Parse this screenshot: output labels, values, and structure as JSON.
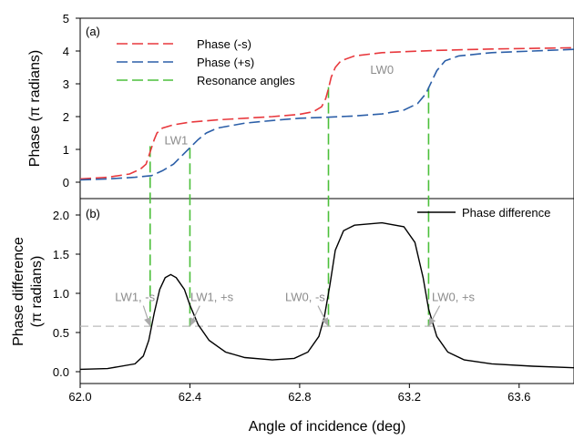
{
  "chart_data": [
    {
      "panel_label": "(a)",
      "type": "line",
      "ylabel": "Phase (π radians)",
      "ylim": [
        0,
        5
      ],
      "yticks": [
        "0",
        "1",
        "2",
        "3",
        "4",
        "5"
      ],
      "xlim": [
        62.0,
        63.8
      ],
      "legend": {
        "placement": "top-left",
        "entries": [
          "Phase (-s)",
          "Phase (+s)",
          "Resonance angles"
        ]
      },
      "series": [
        {
          "name": "Phase (-s)",
          "color": "#e8383d",
          "style": "dashed",
          "points": [
            [
              62.0,
              0.1
            ],
            [
              62.1,
              0.15
            ],
            [
              62.18,
              0.25
            ],
            [
              62.22,
              0.4
            ],
            [
              62.24,
              0.55
            ],
            [
              62.25,
              0.8
            ],
            [
              62.26,
              1.05
            ],
            [
              62.27,
              1.3
            ],
            [
              62.28,
              1.5
            ],
            [
              62.3,
              1.65
            ],
            [
              62.34,
              1.75
            ],
            [
              62.4,
              1.83
            ],
            [
              62.5,
              1.9
            ],
            [
              62.6,
              1.95
            ],
            [
              62.7,
              2.0
            ],
            [
              62.8,
              2.07
            ],
            [
              62.85,
              2.15
            ],
            [
              62.88,
              2.3
            ],
            [
              62.895,
              2.55
            ],
            [
              62.905,
              2.85
            ],
            [
              62.915,
              3.2
            ],
            [
              62.93,
              3.5
            ],
            [
              62.95,
              3.7
            ],
            [
              63.0,
              3.85
            ],
            [
              63.1,
              3.95
            ],
            [
              63.3,
              4.02
            ],
            [
              63.5,
              4.06
            ],
            [
              63.8,
              4.1
            ]
          ]
        },
        {
          "name": "Phase (+s)",
          "color": "#2c5fa8",
          "style": "dashed",
          "points": [
            [
              62.0,
              0.07
            ],
            [
              62.1,
              0.1
            ],
            [
              62.2,
              0.15
            ],
            [
              62.26,
              0.2
            ],
            [
              62.3,
              0.35
            ],
            [
              62.34,
              0.55
            ],
            [
              62.37,
              0.8
            ],
            [
              62.4,
              1.05
            ],
            [
              62.43,
              1.3
            ],
            [
              62.46,
              1.5
            ],
            [
              62.5,
              1.65
            ],
            [
              62.6,
              1.8
            ],
            [
              62.7,
              1.88
            ],
            [
              62.8,
              1.95
            ],
            [
              62.9,
              1.98
            ],
            [
              63.0,
              2.02
            ],
            [
              63.1,
              2.08
            ],
            [
              63.18,
              2.2
            ],
            [
              63.23,
              2.4
            ],
            [
              63.26,
              2.7
            ],
            [
              63.28,
              3.05
            ],
            [
              63.3,
              3.4
            ],
            [
              63.33,
              3.7
            ],
            [
              63.38,
              3.85
            ],
            [
              63.5,
              3.95
            ],
            [
              63.65,
              4.0
            ],
            [
              63.8,
              4.05
            ]
          ]
        }
      ],
      "resonance_lines": [
        {
          "x": 62.255,
          "y_top": 1.1
        },
        {
          "x": 62.4,
          "y_top": 1.05
        },
        {
          "x": 62.905,
          "y_top": 2.9
        },
        {
          "x": 63.27,
          "y_top": 2.9
        }
      ],
      "annotations": [
        {
          "text": "LW1",
          "x": 62.35,
          "y": 1.15
        },
        {
          "text": "LW0",
          "x": 63.1,
          "y": 3.3
        }
      ]
    },
    {
      "panel_label": "(b)",
      "type": "line",
      "ylabel_line1": "Phase difference",
      "ylabel_line2": "(π radians)",
      "xlabel": "Angle of incidence (deg)",
      "xlim": [
        62.0,
        63.8
      ],
      "xticks": [
        "62.0",
        "62.4",
        "62.8",
        "63.2",
        "63.6"
      ],
      "ylim": [
        -0.1,
        2.2
      ],
      "yticks": [
        "0.0",
        "0.5",
        "1.0",
        "1.5",
        "2.0"
      ],
      "legend": {
        "placement": "top-right",
        "entries": [
          "Phase difference"
        ]
      },
      "series": [
        {
          "name": "Phase difference",
          "color": "#000000",
          "style": "solid",
          "points": [
            [
              62.0,
              0.03
            ],
            [
              62.1,
              0.04
            ],
            [
              62.2,
              0.1
            ],
            [
              62.23,
              0.2
            ],
            [
              62.25,
              0.4
            ],
            [
              62.27,
              0.75
            ],
            [
              62.29,
              1.05
            ],
            [
              62.31,
              1.2
            ],
            [
              62.33,
              1.24
            ],
            [
              62.35,
              1.2
            ],
            [
              62.38,
              1.05
            ],
            [
              62.4,
              0.85
            ],
            [
              62.43,
              0.6
            ],
            [
              62.47,
              0.4
            ],
            [
              62.53,
              0.25
            ],
            [
              62.6,
              0.18
            ],
            [
              62.7,
              0.15
            ],
            [
              62.78,
              0.17
            ],
            [
              62.83,
              0.25
            ],
            [
              62.87,
              0.45
            ],
            [
              62.89,
              0.7
            ],
            [
              62.91,
              1.1
            ],
            [
              62.93,
              1.55
            ],
            [
              62.96,
              1.8
            ],
            [
              63.0,
              1.87
            ],
            [
              63.1,
              1.9
            ],
            [
              63.18,
              1.85
            ],
            [
              63.22,
              1.65
            ],
            [
              63.25,
              1.2
            ],
            [
              63.27,
              0.8
            ],
            [
              63.3,
              0.45
            ],
            [
              63.34,
              0.25
            ],
            [
              63.4,
              0.15
            ],
            [
              63.5,
              0.1
            ],
            [
              63.65,
              0.07
            ],
            [
              63.8,
              0.05
            ]
          ]
        }
      ],
      "reference_line": {
        "y": 0.58,
        "color": "#bbbbbb",
        "style": "dashed"
      },
      "resonance_lines": [
        {
          "x": 62.255,
          "y_bottom": 0.58
        },
        {
          "x": 62.4,
          "y_bottom": 0.58
        },
        {
          "x": 62.905,
          "y_bottom": 0.58
        },
        {
          "x": 63.27,
          "y_bottom": 0.58
        }
      ],
      "annotations": [
        {
          "text": "LW1, -s",
          "x": 62.2,
          "y": 0.9,
          "target_x": 62.255,
          "target_y": 0.58
        },
        {
          "text": "LW1, +s",
          "x": 62.48,
          "y": 0.9,
          "target_x": 62.4,
          "target_y": 0.58
        },
        {
          "text": "LW0, -s",
          "x": 62.82,
          "y": 0.9,
          "target_x": 62.905,
          "target_y": 0.58
        },
        {
          "text": "LW0, +s",
          "x": 63.36,
          "y": 0.9,
          "target_x": 63.27,
          "target_y": 0.58
        }
      ]
    }
  ],
  "resonance_color": "#4bbf3a",
  "annotation_color": "#8c8c8c"
}
